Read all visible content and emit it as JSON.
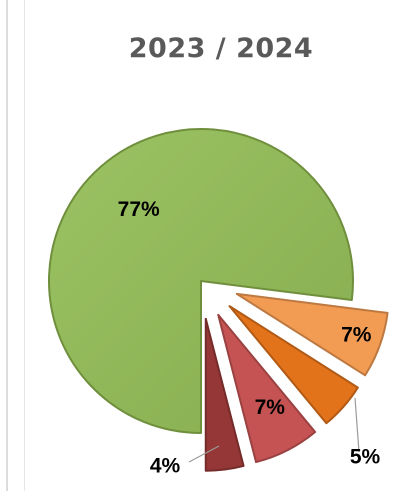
{
  "chart_data": {
    "type": "pie",
    "title": "2023 / 2024",
    "slices": [
      {
        "label": "77%",
        "value": 77,
        "color": "#8db356"
      },
      {
        "label": "7%",
        "value": 7,
        "color": "#f29b53"
      },
      {
        "label": "5%",
        "value": 5,
        "color": "#e3731b"
      },
      {
        "label": "7%",
        "value": 7,
        "color": "#c65353"
      },
      {
        "label": "4%",
        "value": 4,
        "color": "#953736"
      }
    ],
    "legend": "none",
    "exploded_slices": [
      1,
      2,
      3,
      4
    ]
  }
}
